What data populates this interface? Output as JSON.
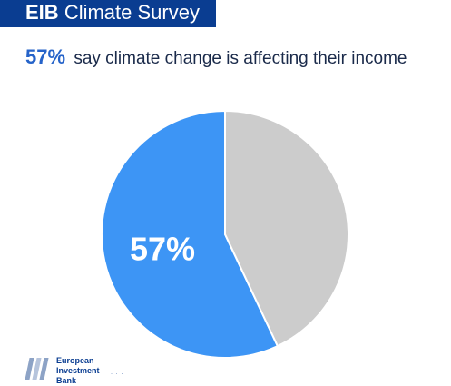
{
  "header": {
    "brand": "EIB",
    "title": "Climate Survey"
  },
  "headline": {
    "percent": "57%",
    "text": "say climate change is affecting their income"
  },
  "colors": {
    "accent": "#3d95f5",
    "rest": "#cccccc",
    "header_bg": "#0a3d91"
  },
  "footer": {
    "logo_line1": "European",
    "logo_line2": "Investment",
    "logo_line3": "Bank"
  },
  "chart_data": {
    "type": "pie",
    "slices": [
      {
        "value": 57,
        "label": "57%",
        "color": "#3d95f5"
      },
      {
        "value": 43,
        "label": "",
        "color": "#cccccc"
      }
    ]
  }
}
